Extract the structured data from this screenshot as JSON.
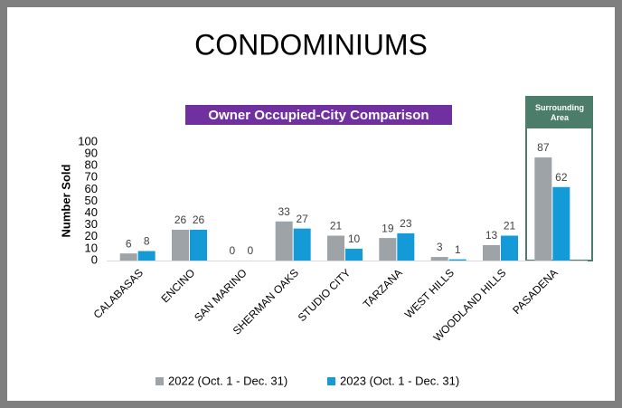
{
  "chart_data": {
    "type": "bar",
    "title": "CONDOMINIUMS",
    "subtitle": "Owner Occupied-City Comparison",
    "annotation": "Surrounding Area",
    "y_label": "Number Sold",
    "categories": [
      "CALABASAS",
      "ENCINO",
      "SAN MARINO",
      "SHERMAN OAKS",
      "STUDIO CITY",
      "TARZANA",
      "WEST HILLS",
      "WOODLAND HILLS",
      "PASADENA"
    ],
    "series": [
      {
        "name": "2022 (Oct. 1 - Dec. 31)",
        "color": "#9ea3a8",
        "values": [
          6,
          26,
          0,
          33,
          21,
          19,
          3,
          13,
          87
        ]
      },
      {
        "name": "2023 (Oct. 1 - Dec. 31)",
        "color": "#149ad6",
        "values": [
          8,
          26,
          0,
          27,
          10,
          23,
          1,
          21,
          62
        ]
      }
    ],
    "ylim": [
      0,
      100
    ],
    "yticks": [
      0,
      10,
      20,
      30,
      40,
      50,
      60,
      70,
      80,
      90,
      100
    ],
    "grid": false,
    "legend": "bottom"
  }
}
